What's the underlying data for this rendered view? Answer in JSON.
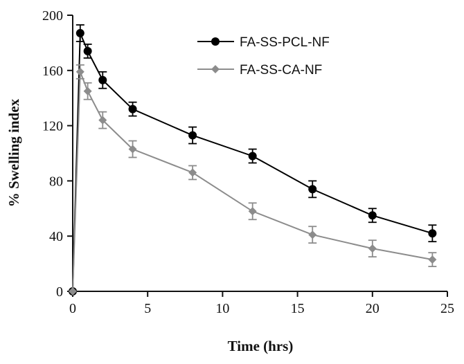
{
  "chart_data": {
    "type": "line",
    "title": "",
    "xlabel": "Time (hrs)",
    "ylabel": "% Swelling index",
    "xlim": [
      0,
      25
    ],
    "ylim": [
      0,
      200
    ],
    "xticks": [
      0,
      5,
      10,
      15,
      20,
      25
    ],
    "yticks": [
      0,
      40,
      80,
      120,
      160,
      200
    ],
    "grid": false,
    "legend_position": "top-center",
    "series": [
      {
        "name": "FA-SS-PCL-NF",
        "color": "#000000",
        "marker": "circle",
        "x": [
          0,
          0.5,
          1,
          2,
          4,
          8,
          12,
          16,
          20,
          24
        ],
        "y": [
          0,
          187,
          174,
          153,
          132,
          113,
          98,
          74,
          55,
          42
        ],
        "err": [
          0,
          6,
          5,
          6,
          5,
          6,
          5,
          6,
          5,
          6
        ]
      },
      {
        "name": "FA-SS-CA-NF",
        "color": "#8c8c8c",
        "marker": "diamond",
        "x": [
          0,
          0.5,
          1,
          2,
          4,
          8,
          12,
          16,
          20,
          24
        ],
        "y": [
          0,
          159,
          145,
          124,
          103,
          86,
          58,
          41,
          31,
          23
        ],
        "err": [
          0,
          5,
          6,
          6,
          6,
          5,
          6,
          6,
          6,
          5
        ]
      }
    ]
  }
}
